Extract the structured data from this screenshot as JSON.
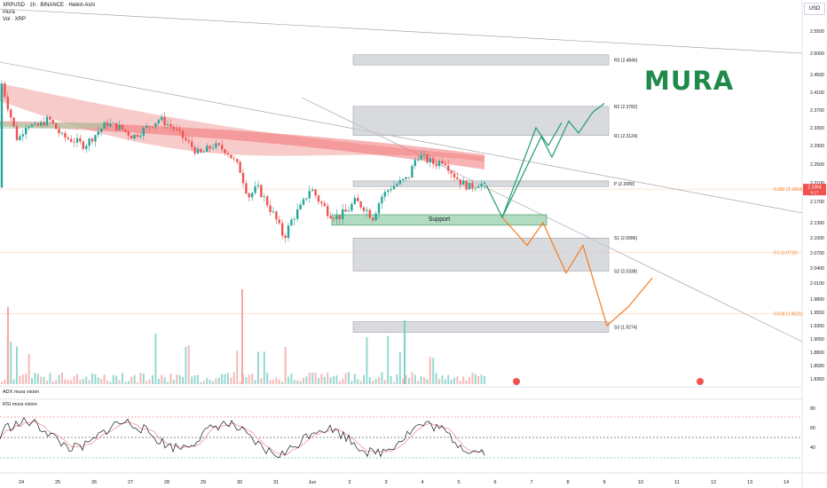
{
  "header": {
    "symbol_line": "XRPUSD · 1h · BINANCE · Heikin Ashi",
    "indicator_1": "mura",
    "indicator_2": "Vol · XRP",
    "currency": "USD"
  },
  "watermark": "MURA",
  "support_label": "Support",
  "panes": {
    "adx_title": "ADX mura vision",
    "rsi_title": "RSI mura vision"
  },
  "chart_data": {
    "type": "candlestick",
    "symbol": "XRPUSD",
    "interval": "1h",
    "exchange": "BINANCE",
    "price_axis": {
      "ticks": [
        "2.5500",
        "2.5000",
        "2.4500",
        "2.4100",
        "2.3700",
        "2.3300",
        "2.2900",
        "2.2500",
        "2.2100",
        "2.1700",
        "2.1300",
        "2.1000",
        "2.0700",
        "2.0400",
        "2.0100",
        "1.9800",
        "1.9550",
        "1.9300",
        "1.9050",
        "1.8800",
        "1.8580",
        "1.8360"
      ],
      "current_price": "2.1964",
      "current_price_sub": "0:17"
    },
    "x_axis": {
      "ticks": [
        "24",
        "25",
        "26",
        "27",
        "28",
        "29",
        "30",
        "31",
        "Jun",
        "2",
        "3",
        "4",
        "5",
        "6",
        "7",
        "8",
        "9",
        "10",
        "11",
        "12",
        "13",
        "14"
      ]
    },
    "pivot_levels": [
      {
        "label": "R3 (2.4846)",
        "value": 2.4846
      },
      {
        "label": "R2 (2.3782)",
        "value": 2.3782
      },
      {
        "label": "R1 (2.3124)",
        "value": 2.3124
      },
      {
        "label": "P (2.2080)",
        "value": 2.208
      },
      {
        "label": "S1 (2.0996)",
        "value": 2.0996
      },
      {
        "label": "S2 (2.0338)",
        "value": 2.0338
      },
      {
        "label": "S3 (1.9274)",
        "value": 1.9274
      }
    ],
    "fib_levels": [
      {
        "label": "0.382 (2.1964)",
        "value": 2.1964
      },
      {
        "label": "0.5 (2.0712)",
        "value": 2.0712
      },
      {
        "label": "0.618 (1.9521)",
        "value": 1.9521
      }
    ],
    "support_zone": {
      "label": "Support",
      "low": 2.125,
      "high": 2.145
    },
    "rsi_axis": {
      "ticks": [
        "80",
        "60",
        "40"
      ]
    },
    "colors": {
      "up": "#26a69a",
      "down": "#ef5350",
      "bull_path": "#1e9c70",
      "bear_path": "#f57c20",
      "ema_band": "#f3a0a0",
      "brand": "#1f8a4a"
    }
  }
}
